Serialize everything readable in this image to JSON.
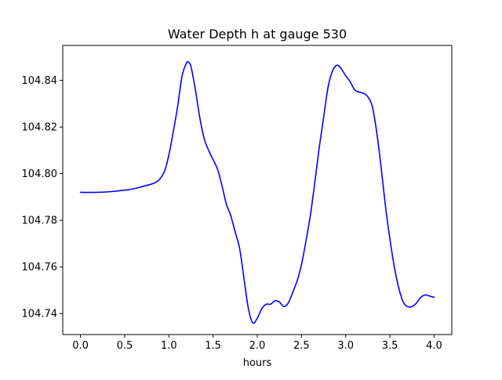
{
  "chart_data": {
    "type": "line",
    "title": "Water Depth h at gauge 530",
    "xlabel": "hours",
    "ylabel": "",
    "xlim": [
      -0.2,
      4.2
    ],
    "ylim": [
      104.731,
      104.855
    ],
    "xticks": [
      0.0,
      0.5,
      1.0,
      1.5,
      2.0,
      2.5,
      3.0,
      3.5,
      4.0
    ],
    "xtick_labels": [
      "0.0",
      "0.5",
      "1.0",
      "1.5",
      "2.0",
      "2.5",
      "3.0",
      "3.5",
      "4.0"
    ],
    "yticks": [
      104.74,
      104.76,
      104.78,
      104.8,
      104.82,
      104.84
    ],
    "ytick_labels": [
      "104.74",
      "104.76",
      "104.78",
      "104.80",
      "104.82",
      "104.84"
    ],
    "grid": false,
    "line_color": "#0000ff",
    "series": [
      {
        "x": [
          0.0,
          0.2,
          0.4,
          0.6,
          0.7,
          0.8,
          0.88,
          0.95,
          1.0,
          1.05,
          1.1,
          1.15,
          1.2,
          1.22,
          1.25,
          1.3,
          1.35,
          1.4,
          1.45,
          1.5,
          1.55,
          1.6,
          1.65,
          1.7,
          1.75,
          1.8,
          1.85,
          1.9,
          1.95,
          2.0,
          2.05,
          2.1,
          2.15,
          2.2,
          2.25,
          2.3,
          2.35,
          2.4,
          2.45,
          2.5,
          2.55,
          2.6,
          2.65,
          2.7,
          2.75,
          2.8,
          2.85,
          2.9,
          2.95,
          3.0,
          3.05,
          3.1,
          3.15,
          3.2,
          3.25,
          3.3,
          3.35,
          3.4,
          3.45,
          3.5,
          3.55,
          3.6,
          3.65,
          3.7,
          3.75,
          3.8,
          3.85,
          3.9,
          3.95,
          4.0
        ],
        "y": [
          104.792,
          104.792,
          104.7925,
          104.7935,
          104.7945,
          104.7955,
          104.797,
          104.801,
          104.808,
          104.818,
          104.829,
          104.842,
          104.8475,
          104.8478,
          104.846,
          104.836,
          104.824,
          104.815,
          104.81,
          104.806,
          104.802,
          104.795,
          104.787,
          104.782,
          104.775,
          104.768,
          104.755,
          104.742,
          104.736,
          104.738,
          104.742,
          104.744,
          104.744,
          104.7455,
          104.745,
          104.743,
          104.7445,
          104.749,
          104.754,
          104.761,
          104.771,
          104.782,
          104.796,
          104.811,
          104.824,
          104.837,
          104.844,
          104.8465,
          104.845,
          104.842,
          104.8395,
          104.836,
          104.835,
          104.8345,
          104.833,
          104.829,
          104.818,
          104.803,
          104.786,
          104.772,
          104.76,
          104.751,
          104.745,
          104.743,
          104.743,
          104.7445,
          104.747,
          104.748,
          104.7475,
          104.747
        ]
      }
    ]
  }
}
